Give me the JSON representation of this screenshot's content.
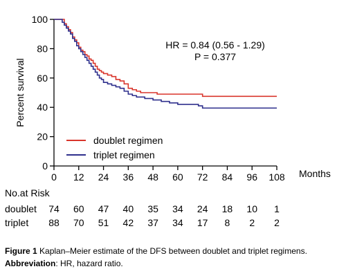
{
  "chart_data": {
    "type": "line",
    "title": "",
    "ylabel": "Percent survival",
    "xlabel": "Months",
    "xlim": [
      0,
      108
    ],
    "ylim": [
      0,
      100
    ],
    "xticks": [
      0,
      12,
      24,
      36,
      48,
      60,
      72,
      84,
      96,
      108
    ],
    "yticks": [
      0,
      20,
      40,
      60,
      80,
      100
    ],
    "annotations": [
      "HR = 0.84 (0.56 - 1.29)",
      "P = 0.377"
    ],
    "legend_position": "bottom-left",
    "series": [
      {
        "name": "doublet regimen",
        "color": "#d9342b",
        "x": [
          0,
          4,
          5,
          6,
          7,
          8,
          9,
          10,
          11,
          12,
          13,
          14,
          15,
          16,
          17,
          18,
          19,
          20,
          21,
          22,
          23,
          24,
          26,
          28,
          30,
          32,
          34,
          36,
          38,
          40,
          42,
          46,
          50,
          60,
          66,
          72,
          84,
          96,
          108
        ],
        "y": [
          100,
          100,
          97,
          95,
          93,
          91,
          88,
          86,
          84,
          81,
          79,
          78,
          76,
          75,
          73,
          72,
          70,
          68,
          66,
          65,
          64,
          63,
          62,
          61,
          59,
          58,
          56,
          53,
          52,
          51,
          50,
          50,
          49,
          49,
          49,
          47.5,
          47.5,
          47.5,
          47.5
        ]
      },
      {
        "name": "triplet regimen",
        "color": "#2e2f8c",
        "x": [
          0,
          3,
          4,
          5,
          6,
          7,
          8,
          9,
          10,
          11,
          12,
          13,
          14,
          15,
          16,
          17,
          18,
          19,
          20,
          21,
          22,
          23,
          24,
          26,
          28,
          30,
          32,
          34,
          36,
          38,
          40,
          44,
          48,
          52,
          56,
          60,
          66,
          70,
          72,
          84,
          96,
          108
        ],
        "y": [
          100,
          100,
          98,
          96,
          94,
          92,
          90,
          87,
          85,
          82,
          80,
          78,
          76,
          74,
          72,
          70,
          68,
          66,
          64,
          62,
          60,
          59,
          57,
          56,
          55,
          54,
          53,
          51,
          49,
          48,
          47,
          46,
          45,
          44,
          43,
          42,
          42,
          41,
          39.5,
          39.5,
          39.5,
          39.5
        ]
      }
    ]
  },
  "risk_table": {
    "title": "No.at Risk",
    "times": [
      0,
      12,
      24,
      36,
      48,
      60,
      72,
      84,
      96,
      108
    ],
    "rows": [
      {
        "label": "doublet",
        "values": [
          "74",
          "60",
          "47",
          "40",
          "35",
          "34",
          "24",
          "18",
          "10",
          "1"
        ]
      },
      {
        "label": "triplet",
        "values": [
          "88",
          "70",
          "51",
          "42",
          "37",
          "34",
          "17",
          "8",
          "2",
          "2"
        ]
      }
    ]
  },
  "caption": {
    "figure_label": "Figure 1",
    "figure_text": " Kaplan–Meier estimate of the DFS between doublet and triplet regimens.",
    "abbrev_label": "Abbreviation",
    "abbrev_text": ": HR, hazard ratio."
  }
}
